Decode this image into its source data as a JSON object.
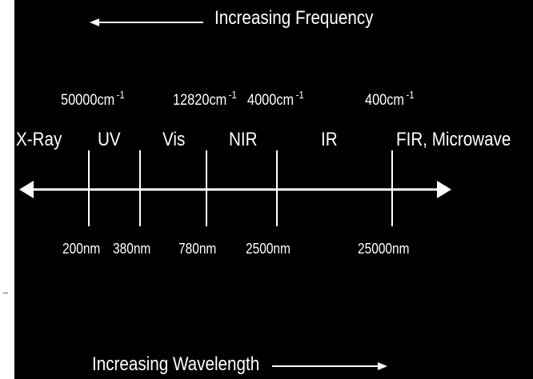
{
  "header": {
    "title": "Increasing Frequency"
  },
  "footer": {
    "title": "Increasing Wavelength"
  },
  "wavenumbers": [
    {
      "value": "50000cm",
      "exp": "-1"
    },
    {
      "value": "12820cm",
      "exp": "-1"
    },
    {
      "value": "4000cm",
      "exp": "-1"
    },
    {
      "value": "400cm",
      "exp": "-1"
    }
  ],
  "regions": [
    "X-Ray",
    "UV",
    "Vis",
    "NIR",
    "IR",
    "FIR, Microwave"
  ],
  "wavelengths": [
    "200nm",
    "380nm",
    "780nm",
    "2500nm",
    "25000nm"
  ],
  "colors": {
    "background": "#000000",
    "foreground": "#ffffff"
  }
}
